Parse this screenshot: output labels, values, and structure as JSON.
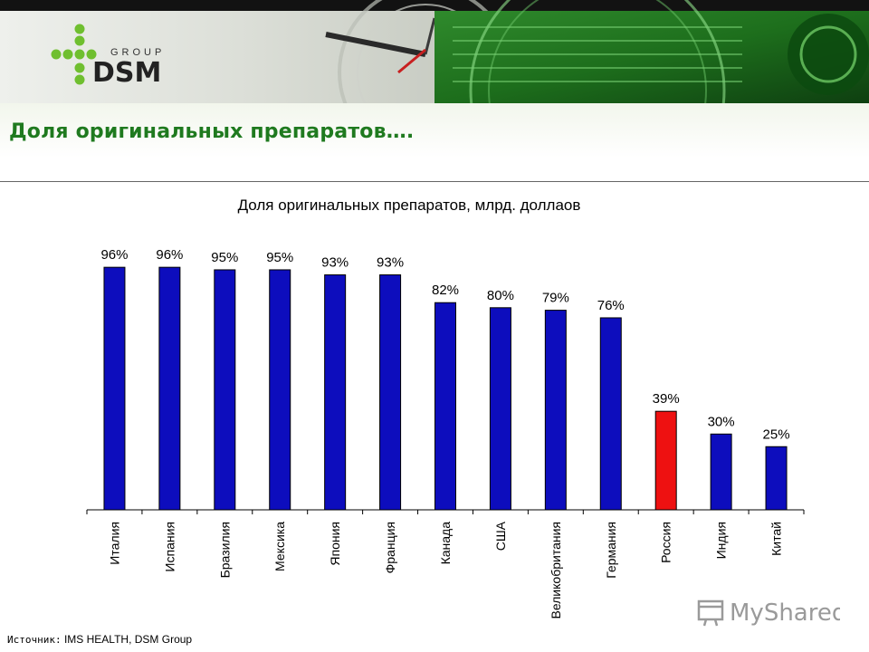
{
  "header": {
    "logo_top": "GROUP",
    "logo_main": "DSM",
    "page_title": "Доля оригинальных препаратов…."
  },
  "chart_data": {
    "type": "bar",
    "title": "Доля оригинальных препаратов, млрд. доллаов",
    "categories": [
      "Италия",
      "Испания",
      "Бразилия",
      "Мексика",
      "Япония",
      "Франция",
      "Канада",
      "США",
      "Великобритания",
      "Германия",
      "Россия",
      "Индия",
      "Китай"
    ],
    "values": [
      96,
      96,
      95,
      95,
      93,
      93,
      82,
      80,
      79,
      76,
      39,
      30,
      25
    ],
    "value_labels": [
      "96%",
      "96%",
      "95%",
      "95%",
      "93%",
      "93%",
      "82%",
      "80%",
      "79%",
      "76%",
      "39%",
      "30%",
      "25%"
    ],
    "unit": "%",
    "ylim": [
      0,
      100
    ],
    "grid": false,
    "bar_color": "#0d0dbd",
    "highlight_category": "Россия",
    "highlight_color": "#ee1111"
  },
  "footer": {
    "source_label": "Источник:",
    "source_text": "IMS HEALTH,  DSM Group",
    "watermark": "MyShared"
  }
}
